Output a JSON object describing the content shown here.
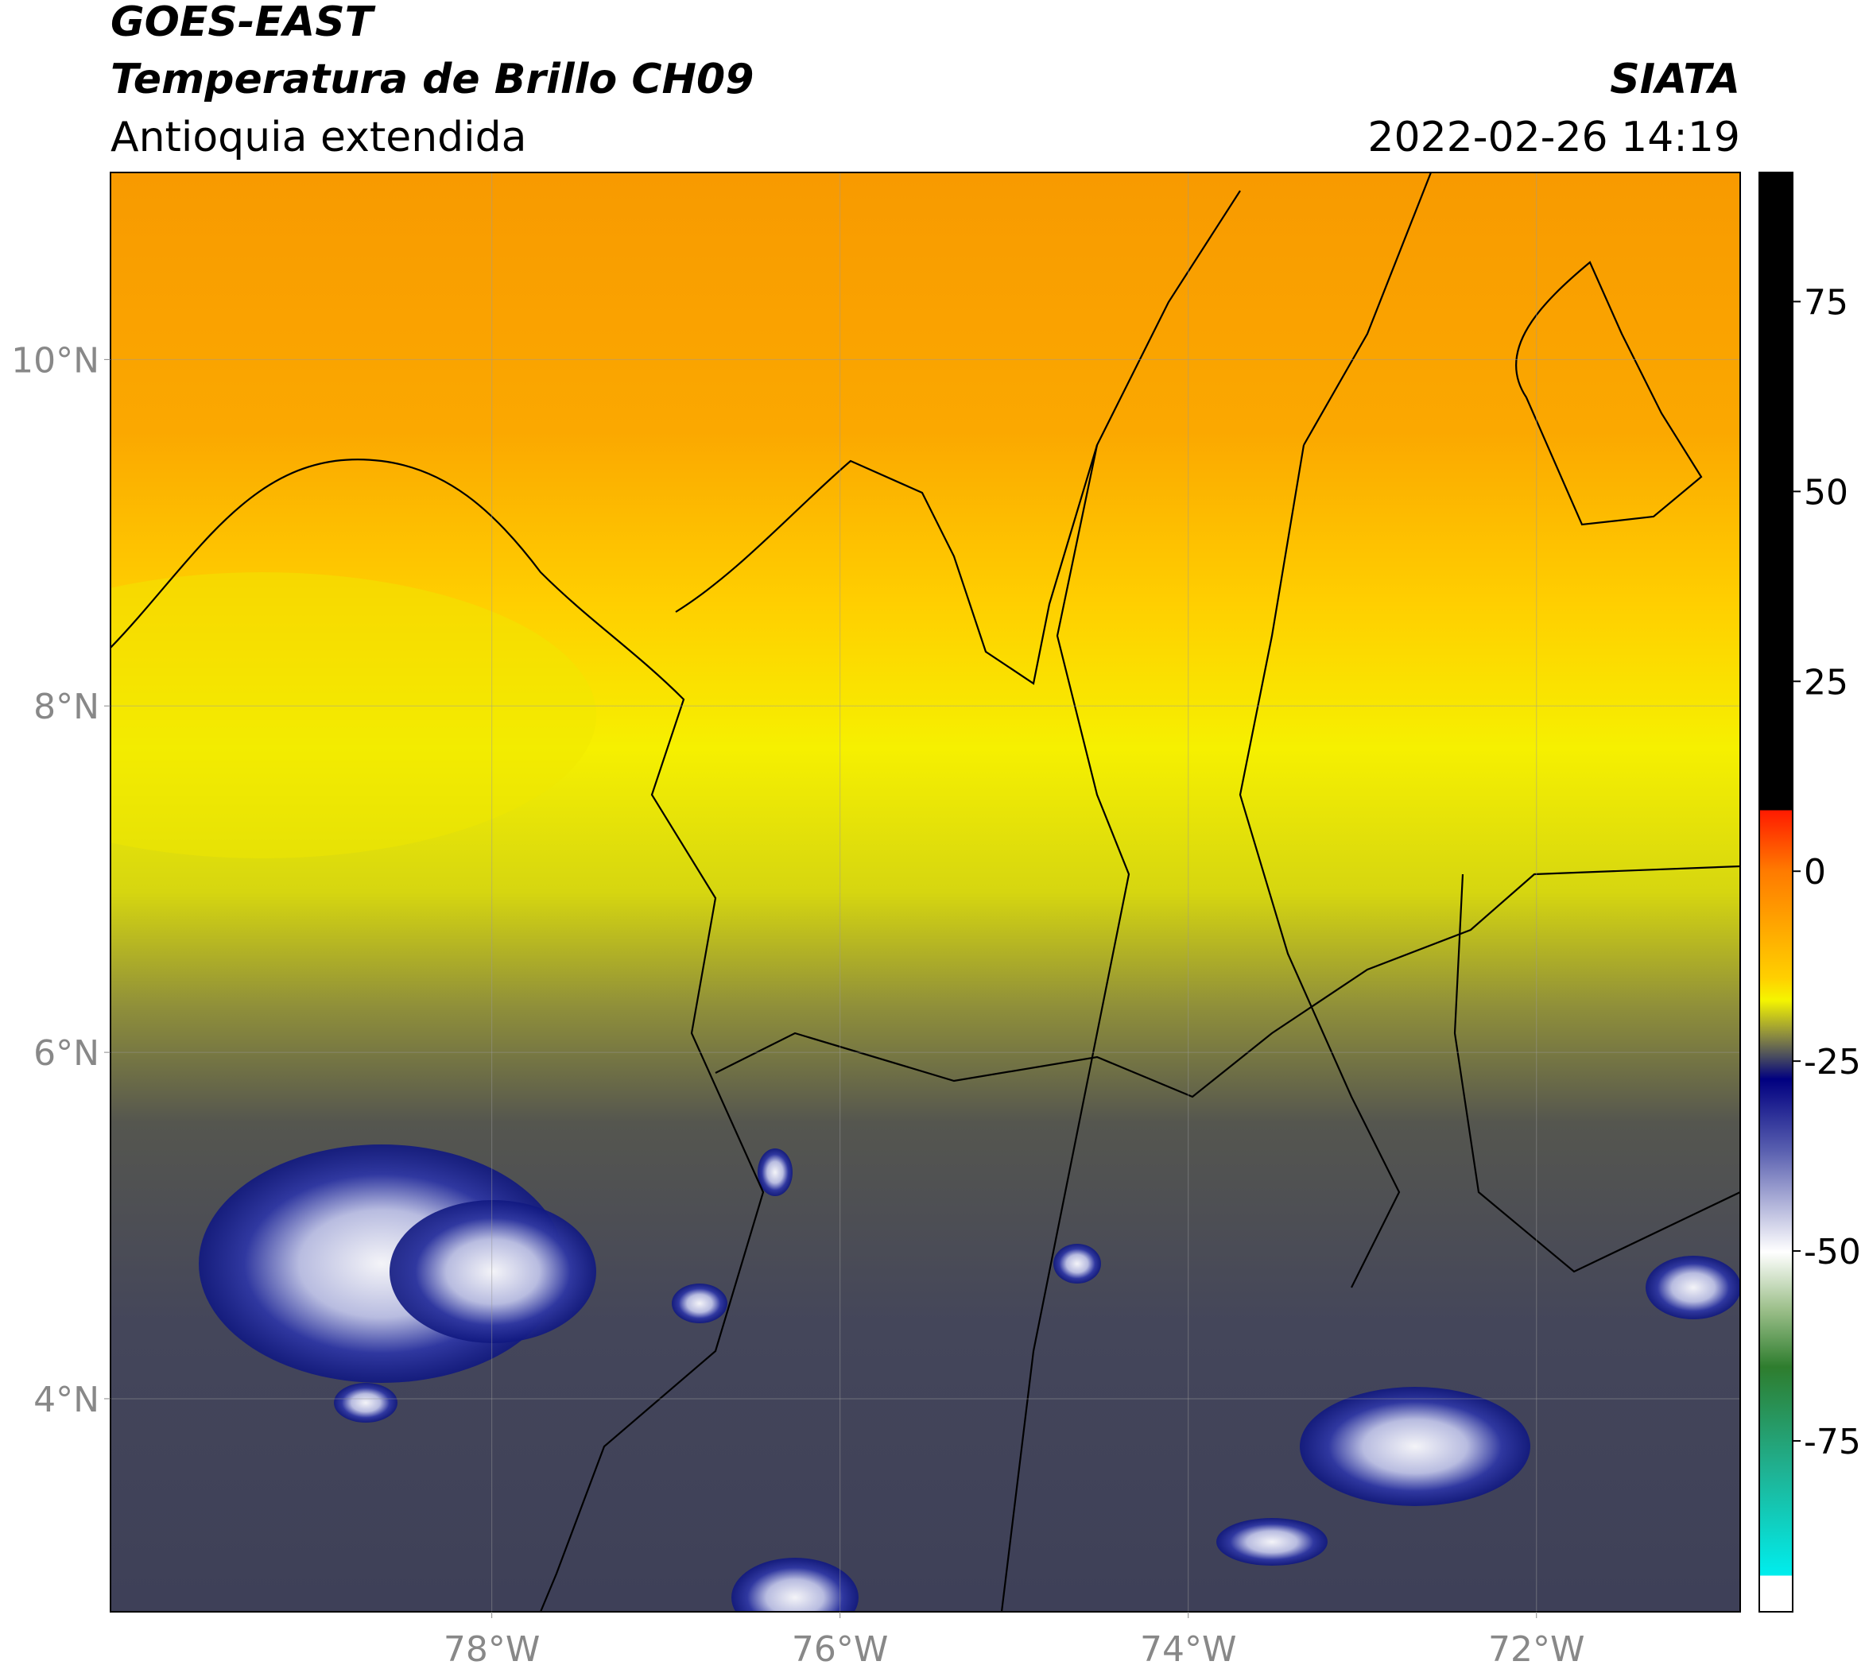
{
  "chart_data": {
    "type": "map",
    "title": "GOES-EAST",
    "subtitle": "Temperatura de Brillo CH09",
    "region": "Antioquia extendida",
    "source": "SIATA",
    "datetime": "2022-02-26 14:19",
    "xlim": [
      -80.19,
      -70.83
    ],
    "ylim": [
      2.77,
      11.08
    ],
    "xticks": [
      {
        "value": -78,
        "label": "78°W"
      },
      {
        "value": -76,
        "label": "76°W"
      },
      {
        "value": -74,
        "label": "74°W"
      },
      {
        "value": -72,
        "label": "72°W"
      }
    ],
    "yticks": [
      {
        "value": 4,
        "label": "4°N"
      },
      {
        "value": 6,
        "label": "6°N"
      },
      {
        "value": 8,
        "label": "8°N"
      },
      {
        "value": 10,
        "label": "10°N"
      }
    ],
    "grid": true,
    "colorbar": {
      "lim": [
        -97.5,
        92
      ],
      "ticks": [
        -75,
        -50,
        -25,
        0,
        25,
        50,
        75
      ]
    }
  }
}
